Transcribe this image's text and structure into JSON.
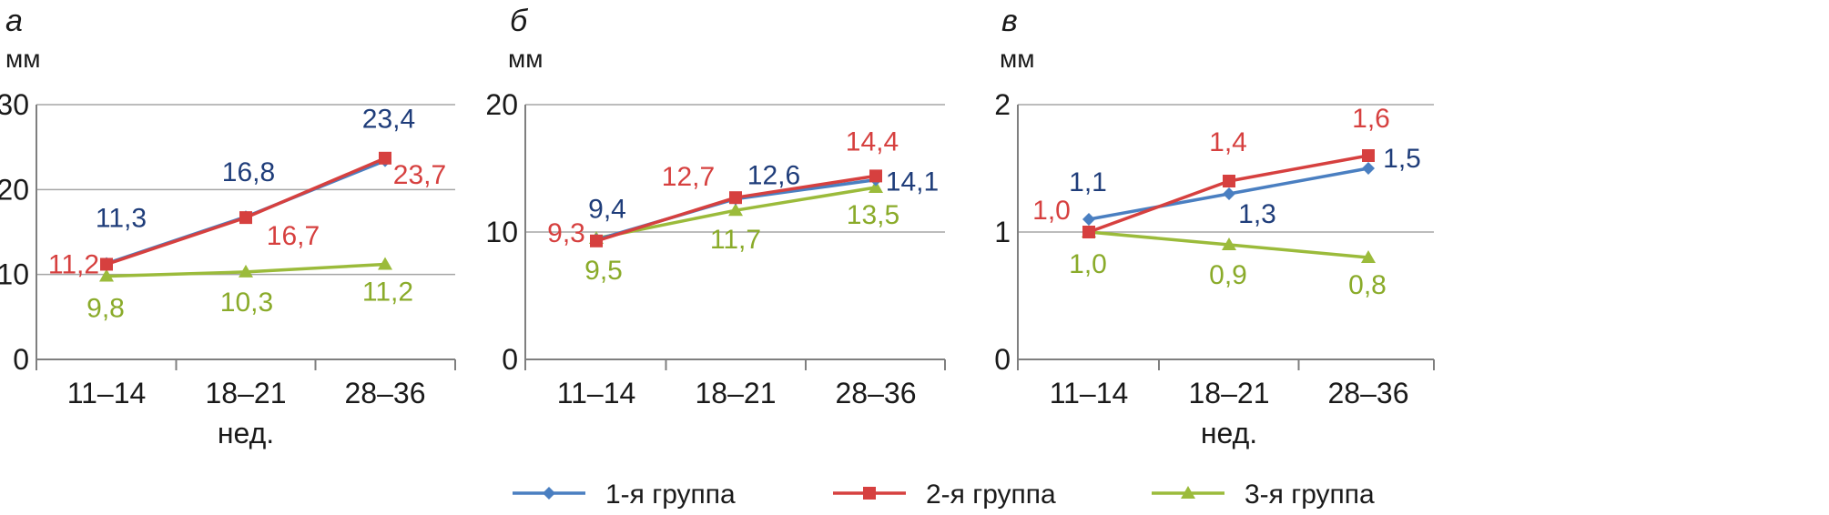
{
  "legend": [
    {
      "name": "1-я группа",
      "color": "#4a7fc1",
      "marker": "diamond"
    },
    {
      "name": "2-я группа",
      "color": "#d6403f",
      "marker": "square"
    },
    {
      "name": "3-я группа",
      "color": "#9bbb3b",
      "marker": "triangle"
    }
  ],
  "label_colors": [
    "#1f3d7a",
    "#d6403f",
    "#8aab2a"
  ],
  "chart_data": [
    {
      "type": "line",
      "panel": "а",
      "ylabel": "мм",
      "xlabel": "нед.",
      "categories": [
        "11–14",
        "18–21",
        "28–36"
      ],
      "ylim": [
        0,
        30
      ],
      "yticks": [
        "0",
        "10",
        "20",
        "30"
      ],
      "grid": true,
      "series": [
        {
          "name": "1-я группа",
          "values": [
            11.3,
            16.8,
            23.4
          ],
          "labels": [
            "11,3",
            "16,8",
            "23,4"
          ]
        },
        {
          "name": "2-я группа",
          "values": [
            11.2,
            16.7,
            23.7
          ],
          "labels": [
            "11,2",
            "16,7",
            "23,7"
          ]
        },
        {
          "name": "3-я группа",
          "values": [
            9.8,
            10.3,
            11.2
          ],
          "labels": [
            "9,8",
            "10,3",
            "11,2"
          ]
        }
      ]
    },
    {
      "type": "line",
      "panel": "б",
      "ylabel": "мм",
      "xlabel": "",
      "categories": [
        "11–14",
        "18–21",
        "28–36"
      ],
      "ylim": [
        0,
        20
      ],
      "yticks": [
        "0",
        "10",
        "20"
      ],
      "grid": true,
      "series": [
        {
          "name": "1-я группа",
          "values": [
            9.4,
            12.6,
            14.1
          ],
          "labels": [
            "9,4",
            "12,6",
            "14,1"
          ]
        },
        {
          "name": "2-я группа",
          "values": [
            9.3,
            12.7,
            14.4
          ],
          "labels": [
            "9,3",
            "12,7",
            "14,4"
          ]
        },
        {
          "name": "3-я группа",
          "values": [
            9.5,
            11.7,
            13.5
          ],
          "labels": [
            "9,5",
            "11,7",
            "13,5"
          ]
        }
      ]
    },
    {
      "type": "line",
      "panel": "в",
      "ylabel": "мм",
      "xlabel": "нед.",
      "categories": [
        "11–14",
        "18–21",
        "28–36"
      ],
      "ylim": [
        0,
        2
      ],
      "yticks": [
        "0",
        "1",
        "2"
      ],
      "grid": true,
      "series": [
        {
          "name": "1-я группа",
          "values": [
            1.1,
            1.3,
            1.5
          ],
          "labels": [
            "1,1",
            "1,3",
            "1,5"
          ]
        },
        {
          "name": "2-я группа",
          "values": [
            1.0,
            1.4,
            1.6
          ],
          "labels": [
            "1,0",
            "1,4",
            "1,6"
          ]
        },
        {
          "name": "3-я группа",
          "values": [
            1.0,
            0.9,
            0.8
          ],
          "labels": [
            "1,0",
            "0,9",
            "0,8"
          ]
        }
      ]
    }
  ]
}
